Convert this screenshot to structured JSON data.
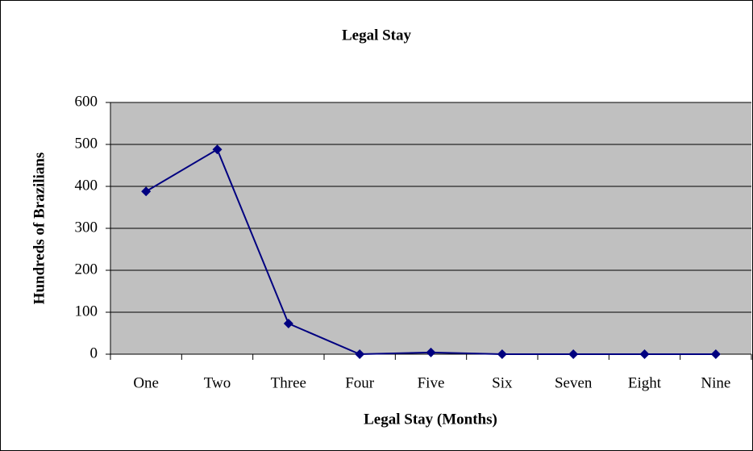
{
  "chart_data": {
    "type": "line",
    "title": "Legal Stay",
    "x_label": "Legal Stay (Months)",
    "y_label": "Hundreds of Brazilians",
    "categories": [
      "One",
      "Two",
      "Three",
      "Four",
      "Five",
      "Six",
      "Seven",
      "Eight",
      "Nine"
    ],
    "series": [
      {
        "name": "Legal Stay",
        "color": "#000080",
        "values": [
          388,
          488,
          73,
          0,
          4,
          0,
          0,
          0,
          0
        ]
      }
    ],
    "ylim": [
      0,
      600
    ],
    "yticks": [
      0,
      100,
      200,
      300,
      400,
      500,
      600
    ],
    "grid": true,
    "plot_background": "#c0c0c0"
  }
}
